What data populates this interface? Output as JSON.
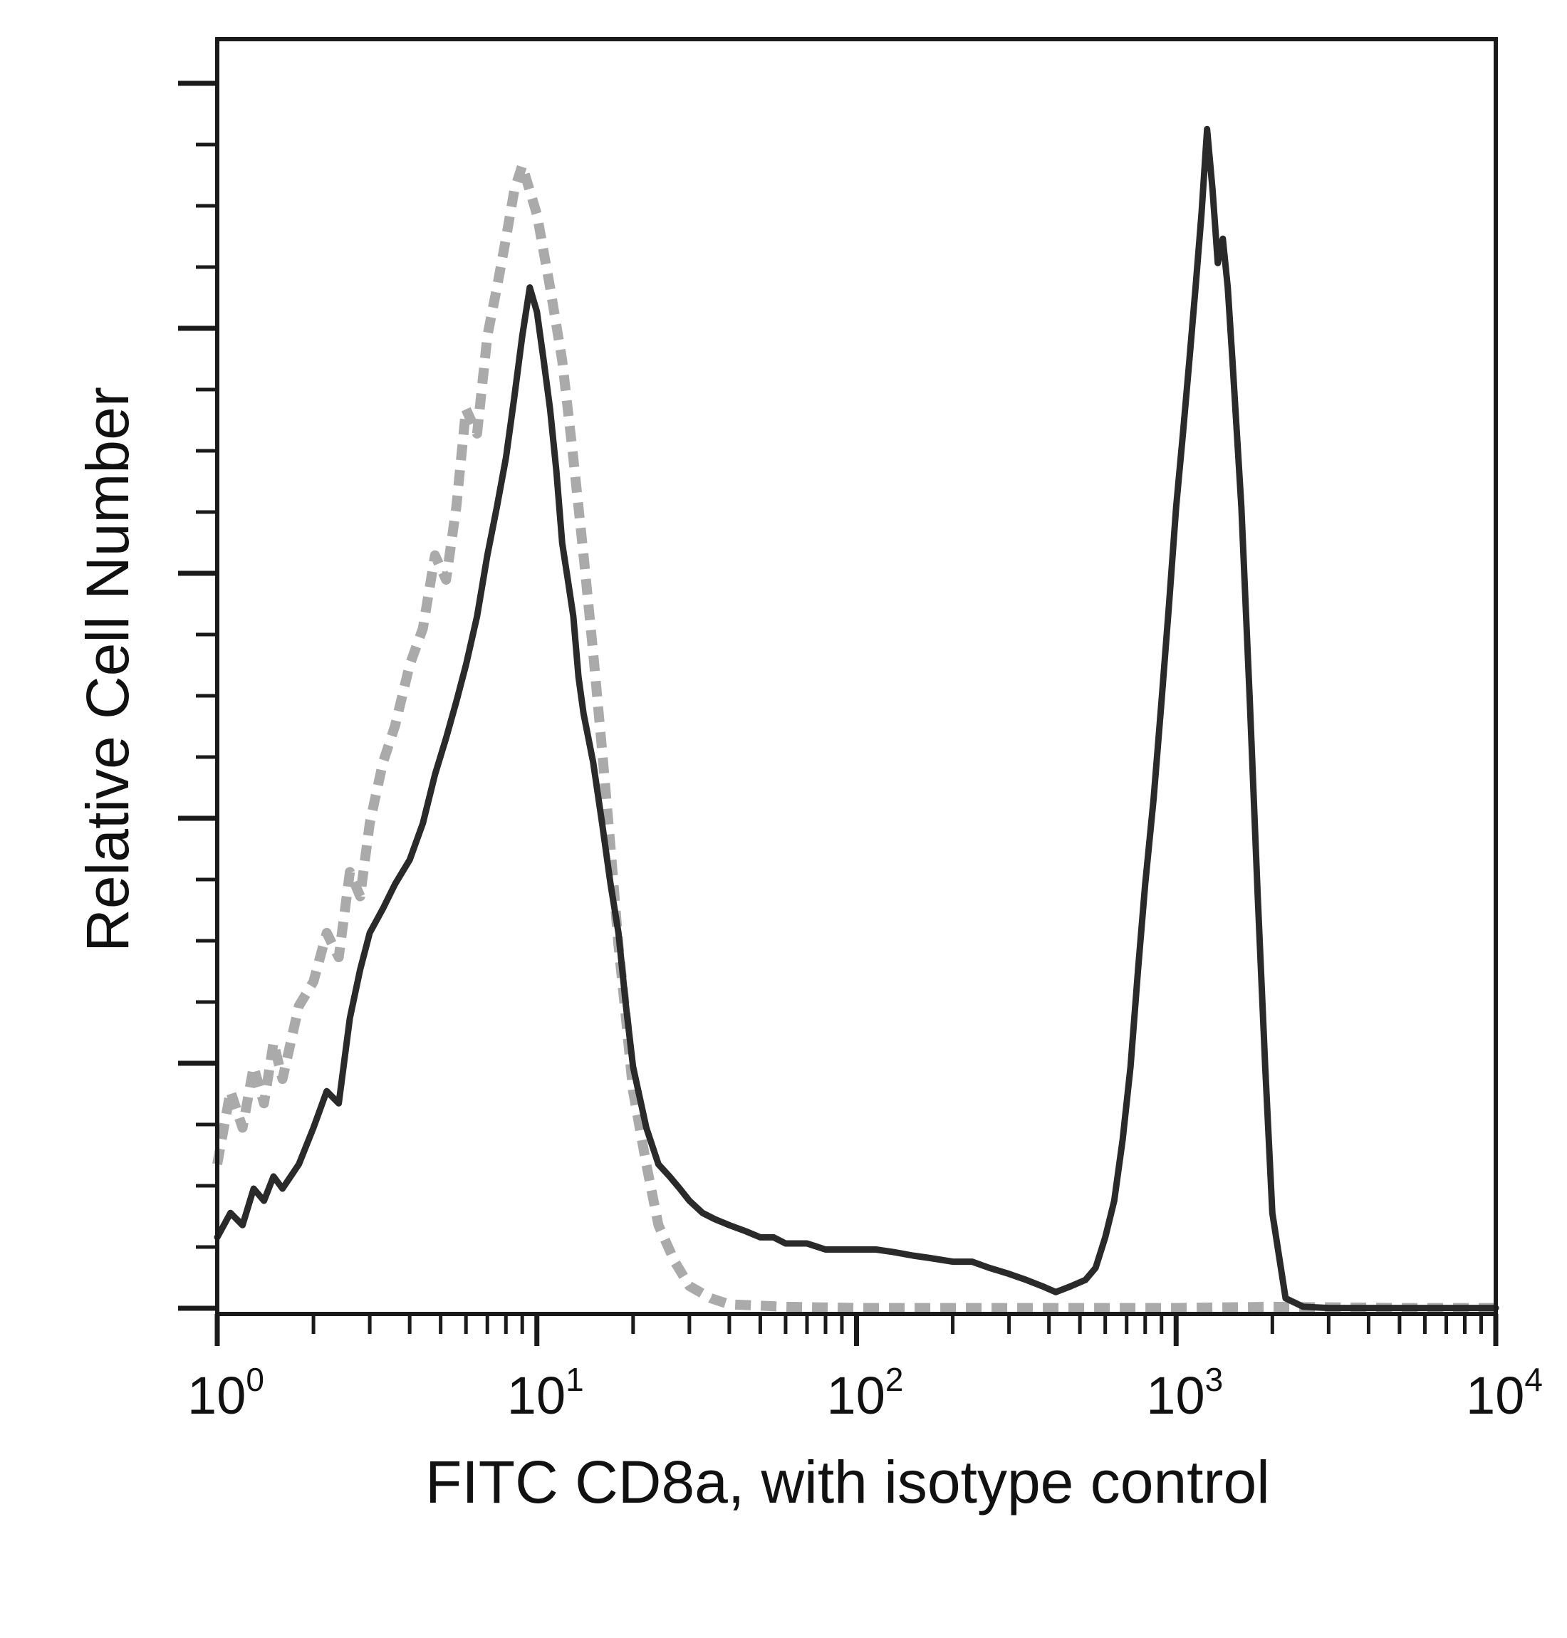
{
  "chart_data": {
    "type": "line",
    "title": "",
    "xlabel": "FITC CD8a, with isotype control",
    "ylabel": "Relative Cell Number",
    "x_scale": "log",
    "xlim": [
      1,
      10000
    ],
    "ylim": [
      0,
      100
    ],
    "grid": false,
    "legend": "none",
    "x_ticks": [
      {
        "base": "10",
        "exp": "0",
        "value": 1
      },
      {
        "base": "10",
        "exp": "1",
        "value": 10
      },
      {
        "base": "10",
        "exp": "2",
        "value": 100
      },
      {
        "base": "10",
        "exp": "3",
        "value": 1000
      },
      {
        "base": "10",
        "exp": "4",
        "value": 10000
      }
    ],
    "series": [
      {
        "role": "isotype control",
        "color": "#aaaaaa",
        "dashed": true,
        "x": [
          1.0,
          1.1,
          1.2,
          1.3,
          1.4,
          1.5,
          1.6,
          1.8,
          2.0,
          2.2,
          2.4,
          2.6,
          2.8,
          3.0,
          3.3,
          3.6,
          4.0,
          4.4,
          4.8,
          5.2,
          5.6,
          6.0,
          6.5,
          7.0,
          7.5,
          8.0,
          8.5,
          9.0,
          10.0,
          11.0,
          12.0,
          13.0,
          14.0,
          15.0,
          16.0,
          17.0,
          18.0,
          19.0,
          20.0,
          22.0,
          24.0,
          27.0,
          30.0,
          35.0,
          40.0,
          60.0,
          100.0,
          200.0,
          500.0,
          1000.0,
          2000.0,
          5000.0,
          10000.0
        ],
        "y": [
          12,
          18,
          15,
          20,
          17,
          22,
          19,
          25,
          27,
          31,
          29,
          36,
          34,
          40,
          45,
          48,
          53,
          56,
          62,
          60,
          66,
          74,
          72,
          80,
          84,
          88,
          92,
          94,
          90,
          84,
          78,
          70,
          62,
          54,
          46,
          38,
          30,
          24,
          18,
          12,
          7,
          4,
          2,
          1,
          0.5,
          0.3,
          0.2,
          0.2,
          0.2,
          0.2,
          0.3,
          0.2,
          0.2
        ]
      },
      {
        "role": "FITC CD8a",
        "color": "#2a2a2a",
        "dashed": false,
        "x": [
          1.0,
          1.1,
          1.2,
          1.3,
          1.4,
          1.5,
          1.6,
          1.8,
          2.0,
          2.2,
          2.4,
          2.6,
          2.8,
          3.0,
          3.3,
          3.6,
          4.0,
          4.4,
          4.8,
          5.2,
          5.6,
          6.0,
          6.5,
          7.0,
          7.5,
          8.0,
          8.5,
          9.0,
          9.5,
          10.0,
          10.5,
          11.0,
          11.5,
          12.0,
          12.5,
          13.0,
          13.5,
          14.0,
          15.0,
          16.0,
          17.0,
          18.0,
          19.0,
          20.0,
          22.0,
          24.0,
          26.0,
          28.0,
          30.0,
          33.0,
          36.0,
          40.0,
          45.0,
          50.0,
          55.0,
          60.0,
          70.0,
          80.0,
          90.0,
          100.0,
          115.0,
          130.0,
          150.0,
          170.0,
          200.0,
          230.0,
          260.0,
          300.0,
          340.0,
          380.0,
          420.0,
          470.0,
          520.0,
          560.0,
          600.0,
          640.0,
          680.0,
          720.0,
          760.0,
          800.0,
          850.0,
          900.0,
          950.0,
          1000.0,
          1050.0,
          1100.0,
          1150.0,
          1200.0,
          1250.0,
          1300.0,
          1350.0,
          1400.0,
          1450.0,
          1500.0,
          1600.0,
          1700.0,
          1800.0,
          1900.0,
          2000.0,
          2200.0,
          2500.0,
          3000.0,
          5000.0,
          10000.0
        ],
        "y": [
          6,
          8,
          7,
          10,
          9,
          11,
          10,
          12,
          15,
          18,
          17,
          24,
          28,
          31,
          33,
          35,
          37,
          40,
          44,
          47,
          50,
          53,
          57,
          62,
          66,
          70,
          75,
          80,
          84,
          82,
          78,
          74,
          69,
          63,
          60,
          57,
          52,
          49,
          45,
          40,
          35,
          31,
          25,
          20,
          15,
          12,
          11,
          10,
          9,
          8,
          7.5,
          7,
          6.5,
          6,
          6,
          5.5,
          5.5,
          5,
          5,
          5,
          5,
          4.8,
          4.5,
          4.3,
          4,
          4,
          3.5,
          3,
          2.5,
          2,
          1.5,
          2,
          2.5,
          3.5,
          6,
          9,
          14,
          20,
          28,
          35,
          42,
          50,
          58,
          66,
          72,
          78,
          84,
          90,
          97,
          92,
          86,
          88,
          84,
          78,
          66,
          50,
          34,
          20,
          8,
          1,
          0.3,
          0.2,
          0.2,
          0.2
        ]
      }
    ]
  }
}
